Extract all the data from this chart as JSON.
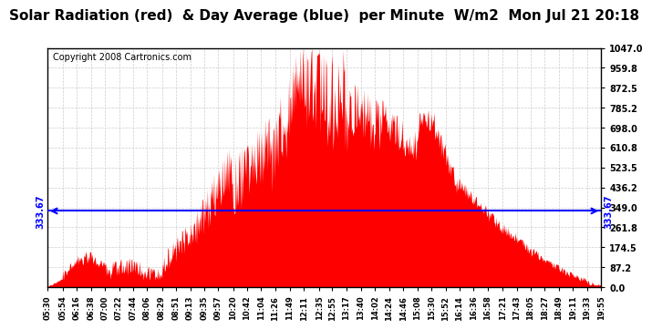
{
  "title": "Solar Radiation (red)  & Day Average (blue)  per Minute  W/m2  Mon Jul 21 20:18",
  "copyright": "Copyright 2008 Cartronics.com",
  "y_max": 1047.0,
  "y_min": 0.0,
  "y_ticks": [
    0.0,
    87.2,
    174.5,
    261.8,
    349.0,
    436.2,
    523.5,
    610.8,
    698.0,
    785.2,
    872.5,
    959.8,
    1047.0
  ],
  "avg_line_value": 333.67,
  "bar_color": "#FF0000",
  "avg_line_color": "#0000FF",
  "background_color": "#FFFFFF",
  "grid_color": "#CCCCCC",
  "title_fontsize": 11,
  "copyright_fontsize": 7,
  "x_start_minutes": 330,
  "x_end_minutes": 1195,
  "x_tick_labels": [
    "05:30",
    "05:54",
    "06:16",
    "06:38",
    "07:00",
    "07:22",
    "07:44",
    "08:06",
    "08:29",
    "08:51",
    "09:13",
    "09:35",
    "09:57",
    "10:20",
    "10:42",
    "11:04",
    "11:26",
    "11:49",
    "12:11",
    "12:35",
    "12:55",
    "13:17",
    "13:40",
    "14:02",
    "14:24",
    "14:46",
    "15:08",
    "15:30",
    "15:52",
    "16:14",
    "16:36",
    "16:58",
    "17:21",
    "17:43",
    "18:05",
    "18:27",
    "18:49",
    "19:11",
    "19:33",
    "19:55"
  ],
  "x_tick_minutes": [
    330,
    354,
    376,
    398,
    420,
    442,
    464,
    486,
    509,
    531,
    553,
    575,
    597,
    620,
    642,
    664,
    686,
    709,
    731,
    755,
    775,
    797,
    820,
    842,
    864,
    886,
    908,
    930,
    952,
    974,
    996,
    1018,
    1041,
    1063,
    1085,
    1107,
    1129,
    1151,
    1173,
    1195
  ]
}
